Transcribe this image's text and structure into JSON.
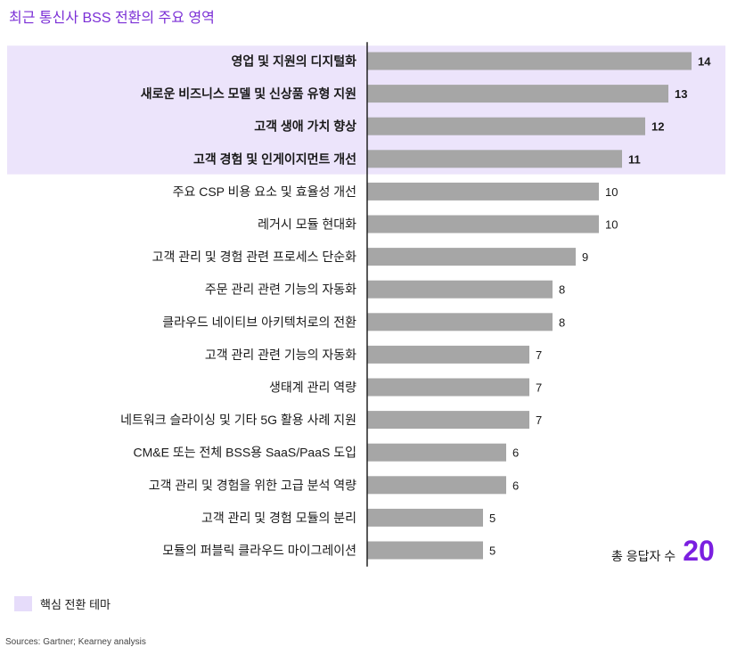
{
  "title": "최근 통신사 BSS 전환의 주요 영역",
  "total": {
    "label": "총 응답자 수",
    "value": "20"
  },
  "legend": {
    "label": "핵심 전환 테마"
  },
  "source": "Sources: Gartner; Kearney analysis",
  "colors": {
    "bar": "#a6a6a6",
    "highlight_bg": "#ece4fb",
    "highlight_legend": "#e6dcfa",
    "accent": "#7b1fe0",
    "axis": "#222222"
  },
  "chart_data": {
    "type": "bar",
    "orientation": "horizontal",
    "title": "최근 통신사 BSS 전환의 주요 영역",
    "categories": [
      "영업 및 지원의 디지털화",
      "새로운 비즈니스 모델 및 신상품 유형 지원",
      "고객 생애 가치 향상",
      "고객 경험 및 인게이지먼트 개선",
      "주요 CSP 비용 요소 및 효율성 개선",
      "레거시 모듈 현대화",
      "고객 관리 및 경험 관련 프로세스 단순화",
      "주문 관리 관련 기능의 자동화",
      "클라우드 네이티브 아키텍처로의 전환",
      "고객 관리 관련 기능의 자동화",
      "생태계 관리 역량",
      "네트워크 슬라이싱 및 기타 5G 활용 사례 지원",
      "CM&E 또는 전체 BSS용 SaaS/PaaS 도입",
      "고객 관리 및 경험을 위한 고급 분석 역량",
      "고객 관리 및 경험 모듈의 분리",
      "모듈의 퍼블릭 클라우드 마이그레이션"
    ],
    "values": [
      14,
      13,
      12,
      11,
      10,
      10,
      9,
      8,
      8,
      7,
      7,
      7,
      6,
      6,
      5,
      5
    ],
    "highlighted": [
      true,
      true,
      true,
      true,
      false,
      false,
      false,
      false,
      false,
      false,
      false,
      false,
      false,
      false,
      false,
      false
    ],
    "xlim": [
      0,
      14
    ],
    "grid": false,
    "legend_position": "bottom-left"
  }
}
